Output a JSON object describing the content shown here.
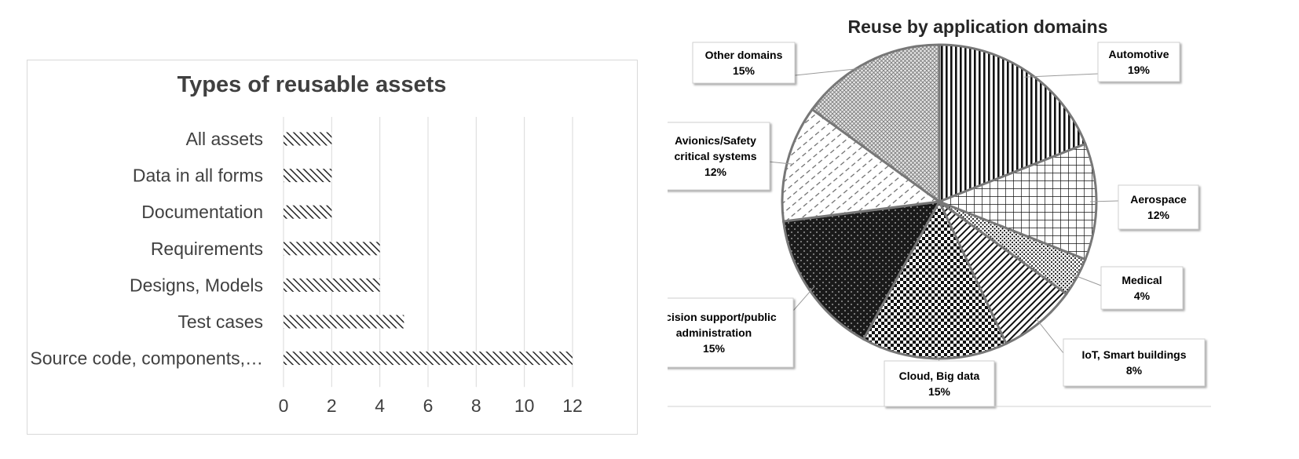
{
  "chart_data": [
    {
      "type": "bar",
      "orientation": "horizontal",
      "title": "Types of reusable assets",
      "xlabel": "",
      "ylabel": "",
      "categories": [
        "All assets",
        "Data in all forms",
        "Documentation",
        "Requirements",
        "Designs, Models",
        "Test cases",
        "Source code, components,…"
      ],
      "values": [
        2,
        2,
        2,
        4,
        4,
        5,
        12
      ],
      "xlim": [
        0,
        12
      ],
      "xticks": [
        "0",
        "2",
        "4",
        "6",
        "8",
        "10",
        "12"
      ],
      "grid": "vertical",
      "fill": "diagonal-hatch",
      "color": "#262626"
    },
    {
      "type": "pie",
      "title": "Reuse by application domains",
      "slices": [
        {
          "label": "Automotive",
          "percent_label": "19%",
          "value": 19,
          "pattern": "vertical-lines"
        },
        {
          "label": "Aerospace",
          "percent_label": "12%",
          "value": 12,
          "pattern": "grid"
        },
        {
          "label": "Medical",
          "percent_label": "4%",
          "value": 4,
          "pattern": "dots"
        },
        {
          "label": "IoT, Smart buildings",
          "percent_label": "8%",
          "value": 8,
          "pattern": "diagonal-lines"
        },
        {
          "label": "Cloud, Big data",
          "percent_label": "15%",
          "value": 15,
          "pattern": "checker"
        },
        {
          "label": "Decision support/public administration",
          "percent_label": "15%",
          "value": 15,
          "pattern": "dark-dotted"
        },
        {
          "label": "Avionics/Safety critical systems",
          "percent_label": "12%",
          "value": 12,
          "pattern": "light-diagonal-dashes"
        },
        {
          "label": "Other domains",
          "percent_label": "15%",
          "value": 15,
          "pattern": "crosshatch"
        }
      ],
      "callouts": [
        {
          "lines": [
            "Automotive",
            "19%"
          ]
        },
        {
          "lines": [
            "Aerospace",
            "12%"
          ]
        },
        {
          "lines": [
            "Medical",
            "4%"
          ]
        },
        {
          "lines": [
            "IoT, Smart buildings",
            "8%"
          ]
        },
        {
          "lines": [
            "Cloud, Big data",
            "15%"
          ]
        },
        {
          "lines": [
            "Decision support/public",
            "administration",
            "15%"
          ]
        },
        {
          "lines": [
            "Avionics/Safety",
            "critical systems",
            "12%"
          ]
        },
        {
          "lines": [
            "Other domains",
            "15%"
          ]
        }
      ]
    }
  ]
}
